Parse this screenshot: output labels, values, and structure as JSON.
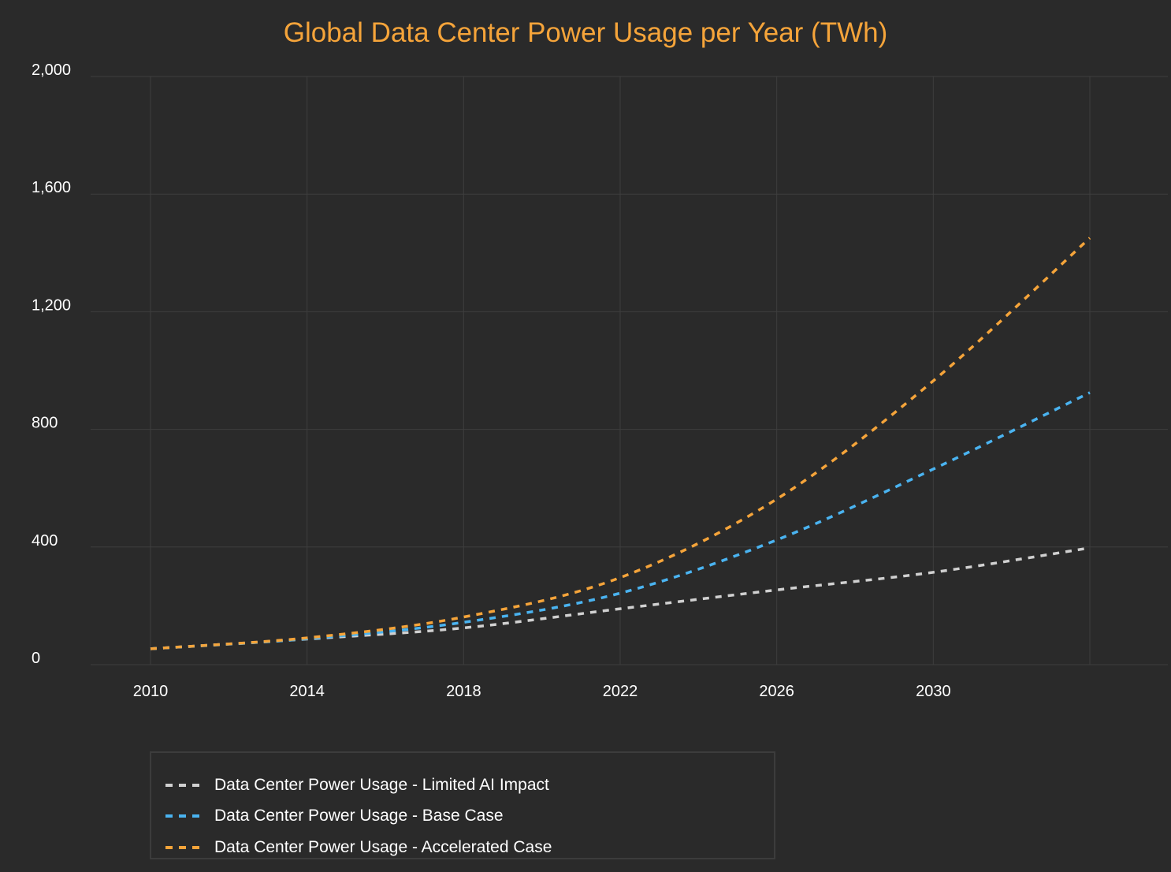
{
  "chart_data": {
    "type": "line",
    "title": "Global Data Center Power Usage per Year (TWh)",
    "xlabel": "",
    "ylabel": "",
    "x": [
      2010,
      2014,
      2018,
      2022,
      2026,
      2030,
      2034
    ],
    "x_ticks": [
      "2010",
      "2014",
      "2018",
      "2022",
      "2026",
      "2030"
    ],
    "y_ticks": [
      "0",
      "400",
      "800",
      "1,200",
      "1,600",
      "2,000"
    ],
    "xlim": [
      2008.5,
      2036
    ],
    "ylim": [
      0,
      2000
    ],
    "grid": true,
    "legend_placement": "bottom",
    "line_style": "dashed",
    "series": [
      {
        "name": "Data Center Power Usage - Limited AI Impact",
        "color": "#d0d0d0",
        "values": [
          54,
          87,
          125,
          190,
          254,
          314,
          397
        ]
      },
      {
        "name": "Data Center Power Usage - Base Case",
        "color": "#4ab3f0",
        "values": [
          54,
          88,
          144,
          243,
          424,
          665,
          925
        ]
      },
      {
        "name": "Data Center Power Usage - Accelerated Case",
        "color": "#f5a43a",
        "values": [
          54,
          91,
          162,
          296,
          563,
          965,
          1451
        ]
      }
    ]
  },
  "colors": {
    "background": "#2a2a2a",
    "grid": "#3e3e3e",
    "title": "#f5a43a"
  }
}
